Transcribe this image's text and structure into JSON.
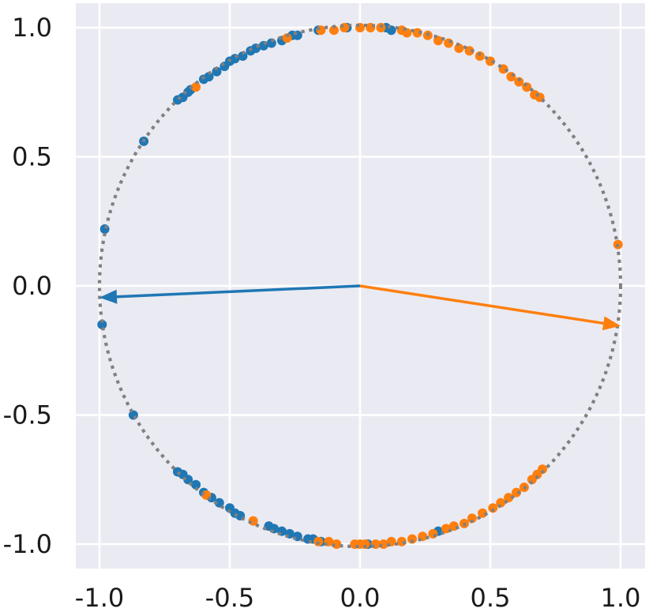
{
  "chart_data": {
    "type": "scatter",
    "title": "",
    "xlabel": "",
    "ylabel": "",
    "xlim": [
      -1.1,
      1.1
    ],
    "ylim": [
      -1.1,
      1.1
    ],
    "xticks": [
      "-1.0",
      "-0.5",
      "0.0",
      "0.5",
      "1.0"
    ],
    "yticks": [
      "1.0",
      "0.5",
      "0.0",
      "-0.5",
      "-1.0"
    ],
    "xtick_values": [
      -1.0,
      -0.5,
      0.0,
      0.5,
      1.0
    ],
    "ytick_values": [
      1.0,
      0.5,
      0.0,
      -0.5,
      -1.0
    ],
    "grid": true,
    "background_color": "#EAEAF2",
    "grid_color": "#FFFFFF",
    "circle": {
      "center": [
        0,
        0
      ],
      "radius": 1,
      "style": "dotted",
      "color": "#808080"
    },
    "series": [
      {
        "color": "#1F77B4",
        "points": [
          [
            -0.98,
            0.22
          ],
          [
            -0.83,
            0.56
          ],
          [
            -0.99,
            -0.15
          ],
          [
            -0.87,
            -0.5
          ],
          [
            -0.7,
            0.72
          ],
          [
            -0.68,
            0.73
          ],
          [
            -0.66,
            0.75
          ],
          [
            -0.65,
            0.76
          ],
          [
            -0.6,
            0.8
          ],
          [
            -0.58,
            0.81
          ],
          [
            -0.55,
            0.83
          ],
          [
            -0.52,
            0.85
          ],
          [
            -0.5,
            0.87
          ],
          [
            -0.48,
            0.88
          ],
          [
            -0.45,
            0.89
          ],
          [
            -0.42,
            0.91
          ],
          [
            -0.4,
            0.92
          ],
          [
            -0.37,
            0.93
          ],
          [
            -0.34,
            0.94
          ],
          [
            -0.3,
            0.95
          ],
          [
            -0.26,
            0.97
          ],
          [
            -0.24,
            0.97
          ],
          [
            -0.16,
            0.99
          ],
          [
            -0.05,
            1.0
          ],
          [
            0.1,
            1.0
          ],
          [
            0.12,
            0.99
          ],
          [
            -0.7,
            -0.72
          ],
          [
            -0.68,
            -0.73
          ],
          [
            -0.66,
            -0.75
          ],
          [
            -0.63,
            -0.77
          ],
          [
            -0.6,
            -0.8
          ],
          [
            -0.57,
            -0.82
          ],
          [
            -0.54,
            -0.84
          ],
          [
            -0.5,
            -0.86
          ],
          [
            -0.48,
            -0.88
          ],
          [
            -0.46,
            -0.89
          ],
          [
            -0.35,
            -0.93
          ],
          [
            -0.33,
            -0.94
          ],
          [
            -0.3,
            -0.95
          ],
          [
            -0.27,
            -0.96
          ],
          [
            -0.24,
            -0.97
          ],
          [
            -0.2,
            -0.98
          ],
          [
            -0.18,
            -0.98
          ],
          [
            -0.15,
            -0.99
          ],
          [
            0.03,
            -1.0
          ],
          [
            0.3,
            -0.95
          ]
        ]
      },
      {
        "color": "#FF7F0E",
        "points": [
          [
            0.99,
            0.16
          ],
          [
            -0.63,
            0.77
          ],
          [
            -0.28,
            0.96
          ],
          [
            -0.59,
            -0.81
          ],
          [
            -0.41,
            -0.91
          ],
          [
            -0.15,
            0.99
          ],
          [
            -0.1,
            0.99
          ],
          [
            -0.06,
            1.0
          ],
          [
            0.0,
            1.0
          ],
          [
            0.04,
            1.0
          ],
          [
            0.08,
            1.0
          ],
          [
            0.16,
            0.99
          ],
          [
            0.18,
            0.98
          ],
          [
            0.22,
            0.98
          ],
          [
            0.26,
            0.97
          ],
          [
            0.3,
            0.95
          ],
          [
            0.34,
            0.94
          ],
          [
            0.38,
            0.92
          ],
          [
            0.42,
            0.91
          ],
          [
            0.46,
            0.89
          ],
          [
            0.5,
            0.87
          ],
          [
            0.55,
            0.84
          ],
          [
            0.58,
            0.81
          ],
          [
            0.61,
            0.79
          ],
          [
            0.64,
            0.77
          ],
          [
            0.67,
            0.74
          ],
          [
            0.69,
            0.73
          ],
          [
            -0.16,
            -0.99
          ],
          [
            -0.12,
            -0.99
          ],
          [
            -0.09,
            -1.0
          ],
          [
            -0.02,
            -1.0
          ],
          [
            0.0,
            -1.0
          ],
          [
            0.02,
            -1.0
          ],
          [
            0.06,
            -1.0
          ],
          [
            0.09,
            -1.0
          ],
          [
            0.12,
            -0.99
          ],
          [
            0.16,
            -0.99
          ],
          [
            0.2,
            -0.98
          ],
          [
            0.24,
            -0.97
          ],
          [
            0.28,
            -0.96
          ],
          [
            0.33,
            -0.94
          ],
          [
            0.36,
            -0.93
          ],
          [
            0.4,
            -0.92
          ],
          [
            0.43,
            -0.9
          ],
          [
            0.47,
            -0.88
          ],
          [
            0.51,
            -0.86
          ],
          [
            0.54,
            -0.84
          ],
          [
            0.57,
            -0.82
          ],
          [
            0.6,
            -0.8
          ],
          [
            0.63,
            -0.78
          ],
          [
            0.66,
            -0.75
          ],
          [
            0.68,
            -0.73
          ],
          [
            0.7,
            -0.71
          ]
        ]
      }
    ],
    "arrows": [
      {
        "from": [
          0,
          0
        ],
        "to": [
          -1.0,
          -0.045
        ],
        "color": "#1F77B4"
      },
      {
        "from": [
          0,
          0
        ],
        "to": [
          1.0,
          -0.155
        ],
        "color": "#FF7F0E"
      }
    ]
  }
}
